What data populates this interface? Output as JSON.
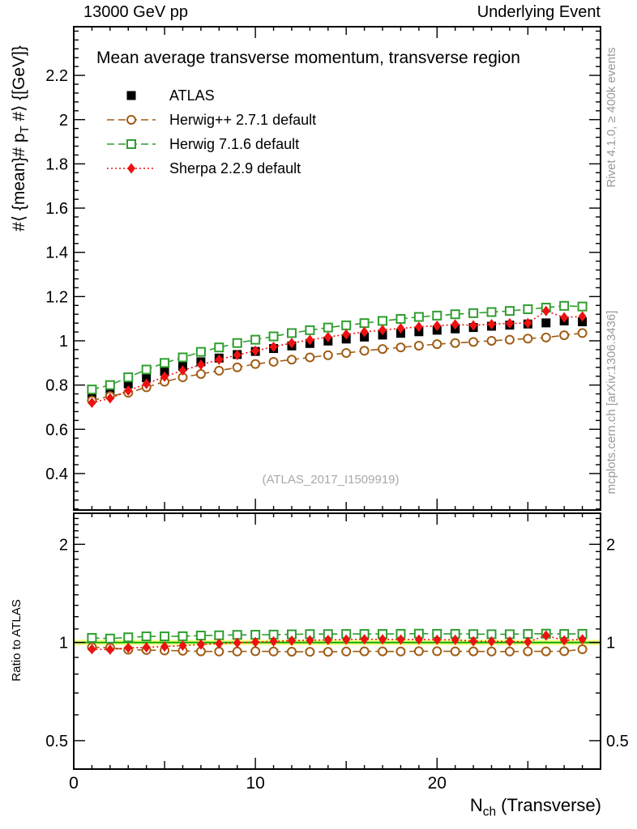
{
  "header": {
    "left": "13000 GeV pp",
    "right": "Underlying Event"
  },
  "watermark": "(ATLAS_2017_I1509919)",
  "side_texts": {
    "top_right": "Rivet 4.1.0, ≥ 400k events",
    "bottom_right": "mcplots.cern.ch [arXiv:1306.3436]"
  },
  "chart_data": {
    "type": "scatter",
    "title": "Mean average transverse momentum, transverse region",
    "xlabel": {
      "main": "N",
      "sub": "ch",
      "rest": " (Transverse)"
    },
    "ylabel": {
      "pre": "#⟨ {mean}# p",
      "sub": "T",
      "post": " #⟩ {[GeV]}"
    },
    "ratio_ylabel": "Ratio to ATLAS",
    "xlim": [
      0,
      29
    ],
    "ylim_main": [
      0.235,
      2.42
    ],
    "ylim_ratio": [
      0.409,
      2.49
    ],
    "ratio_scale": "log",
    "grid": false,
    "legend_position": "top-left",
    "x_ticks": {
      "labels": [
        {
          "v": 0,
          "t": "0"
        },
        {
          "v": 10,
          "t": "10"
        },
        {
          "v": 20,
          "t": "20"
        }
      ],
      "minor_every": 1,
      "medium_every": 5
    },
    "y_ticks_main": {
      "labels": [
        {
          "v": 0.4,
          "t": "0.4"
        },
        {
          "v": 0.6,
          "t": "0.6"
        },
        {
          "v": 0.8,
          "t": "0.8"
        },
        {
          "v": 1,
          "t": "1"
        },
        {
          "v": 1.2,
          "t": "1.2"
        },
        {
          "v": 1.4,
          "t": "1.4"
        },
        {
          "v": 1.6,
          "t": "1.6"
        },
        {
          "v": 1.8,
          "t": "1.8"
        },
        {
          "v": 2,
          "t": "2"
        },
        {
          "v": 2.2,
          "t": "2.2"
        }
      ],
      "minor_step": 0.04
    },
    "y_ticks_ratio": {
      "labels": [
        {
          "v": 0.5,
          "t": "0.5"
        },
        {
          "v": 1,
          "t": "1"
        },
        {
          "v": 2,
          "t": "2"
        }
      ]
    },
    "band": {
      "lo": 0.98,
      "hi": 1.02,
      "color": "#ffff8c"
    },
    "refline": {
      "y": 1,
      "color": "#00a800"
    },
    "x": [
      1,
      2,
      3,
      4,
      5,
      6,
      7,
      8,
      9,
      10,
      11,
      12,
      13,
      14,
      15,
      16,
      17,
      18,
      19,
      20,
      21,
      22,
      23,
      24,
      25,
      26,
      27,
      28
    ],
    "series": [
      {
        "label": "ATLAS",
        "marker": "square-filled",
        "color": "#000000",
        "line": "none",
        "values": [
          0.755,
          0.778,
          0.805,
          0.833,
          0.862,
          0.885,
          0.905,
          0.922,
          0.938,
          0.952,
          0.965,
          0.977,
          0.988,
          0.999,
          1.008,
          1.017,
          1.026,
          1.034,
          1.041,
          1.048,
          1.054,
          1.06,
          1.066,
          1.071,
          1.076,
          1.081,
          1.09,
          1.086
        ],
        "ratio": null
      },
      {
        "label": "Herwig++ 2.7.1 default",
        "marker": "circle-open",
        "color": "#a05d15",
        "line": "dashed",
        "values": [
          0.73,
          0.75,
          0.765,
          0.79,
          0.815,
          0.835,
          0.85,
          0.865,
          0.88,
          0.895,
          0.905,
          0.915,
          0.925,
          0.935,
          0.945,
          0.955,
          0.963,
          0.97,
          0.978,
          0.985,
          0.99,
          0.995,
          1.0,
          1.005,
          1.01,
          1.015,
          1.025,
          1.035
        ],
        "ratio": [
          0.967,
          0.964,
          0.95,
          0.948,
          0.945,
          0.943,
          0.939,
          0.938,
          0.938,
          0.94,
          0.938,
          0.937,
          0.936,
          0.936,
          0.938,
          0.939,
          0.939,
          0.938,
          0.94,
          0.94,
          0.939,
          0.939,
          0.938,
          0.938,
          0.939,
          0.939,
          0.94,
          0.953
        ]
      },
      {
        "label": "Herwig 7.1.6 default",
        "marker": "square-open",
        "color": "#2f9e2f",
        "line": "dashed",
        "values": [
          0.78,
          0.8,
          0.835,
          0.87,
          0.9,
          0.925,
          0.95,
          0.97,
          0.99,
          1.005,
          1.02,
          1.035,
          1.048,
          1.06,
          1.07,
          1.08,
          1.09,
          1.099,
          1.108,
          1.114,
          1.12,
          1.125,
          1.13,
          1.135,
          1.143,
          1.15,
          1.158,
          1.155
        ],
        "ratio": [
          1.033,
          1.028,
          1.037,
          1.044,
          1.044,
          1.045,
          1.05,
          1.052,
          1.055,
          1.056,
          1.057,
          1.059,
          1.061,
          1.061,
          1.062,
          1.062,
          1.062,
          1.063,
          1.064,
          1.063,
          1.063,
          1.061,
          1.06,
          1.06,
          1.062,
          1.064,
          1.062,
          1.063
        ]
      },
      {
        "label": "Sherpa 2.2.9 default",
        "marker": "diamond-filled",
        "color": "#ee1111",
        "line": "dotted",
        "values": [
          0.72,
          0.74,
          0.775,
          0.805,
          0.838,
          0.866,
          0.892,
          0.915,
          0.936,
          0.955,
          0.973,
          0.99,
          1.004,
          1.017,
          1.029,
          1.04,
          1.049,
          1.056,
          1.063,
          1.068,
          1.074,
          1.07,
          1.075,
          1.079,
          1.08,
          1.135,
          1.106,
          1.11
        ],
        "ratio": [
          0.954,
          0.951,
          0.963,
          0.966,
          0.972,
          0.978,
          0.986,
          0.992,
          0.998,
          1.003,
          1.008,
          1.013,
          1.016,
          1.018,
          1.021,
          1.023,
          1.022,
          1.021,
          1.021,
          1.019,
          1.019,
          1.009,
          1.008,
          1.007,
          1.004,
          1.05,
          1.015,
          1.022
        ]
      }
    ]
  }
}
